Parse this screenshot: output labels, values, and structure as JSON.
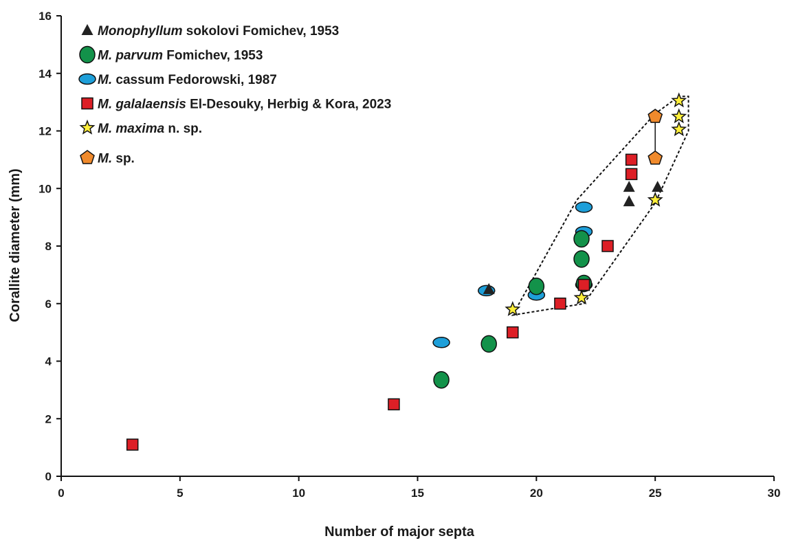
{
  "chart_data": {
    "type": "scatter",
    "xlabel": "Number of major septa",
    "ylabel": "Corallite diameter (mm)",
    "xlim": [
      0,
      30
    ],
    "ylim": [
      0,
      16
    ],
    "xticks": [
      0,
      5,
      10,
      15,
      20,
      25,
      30
    ],
    "yticks": [
      0,
      2,
      4,
      6,
      8,
      10,
      12,
      14,
      16
    ],
    "grid": false,
    "legend_position": "top-left",
    "series": [
      {
        "name_italic": "Monophyllum",
        "name_rest": " sokolovi Fomichev, 1953",
        "marker": "triangle",
        "color": "#222222",
        "points": [
          [
            18,
            6.5
          ],
          [
            23.9,
            10.05
          ],
          [
            23.9,
            9.55
          ],
          [
            25.1,
            10.05
          ]
        ]
      },
      {
        "name_italic": "M. parvum",
        "name_rest": " Fomichev, 1953",
        "marker": "circle",
        "color": "#13924a",
        "points": [
          [
            16,
            3.35
          ],
          [
            18,
            4.6
          ],
          [
            20,
            6.6
          ],
          [
            21.9,
            8.25
          ],
          [
            21.9,
            7.55
          ],
          [
            22,
            6.7
          ]
        ]
      },
      {
        "name_italic": "M.",
        "name_rest": " cassum Fedorowski, 1987",
        "marker": "ellipse",
        "color": "#1e9fd9",
        "points": [
          [
            16,
            4.65
          ],
          [
            17.9,
            6.45
          ],
          [
            20,
            6.3
          ],
          [
            22,
            9.35
          ],
          [
            22,
            8.5
          ],
          [
            22,
            6.65
          ]
        ]
      },
      {
        "name_italic": "M. galalaensis",
        "name_rest": " El-Desouky, Herbig & Kora, 2023",
        "marker": "square",
        "color": "#dd1f26",
        "points": [
          [
            3,
            1.1
          ],
          [
            14,
            2.5
          ],
          [
            19,
            5.0
          ],
          [
            21,
            6.0
          ],
          [
            22,
            6.65
          ],
          [
            23,
            8.0
          ],
          [
            24,
            11.0
          ],
          [
            24,
            10.5
          ]
        ]
      },
      {
        "name_italic": "M. maxima",
        "name_rest": " n. sp.",
        "marker": "star",
        "color": "#ffef3a",
        "points": [
          [
            19,
            5.8
          ],
          [
            21.9,
            6.2
          ],
          [
            25,
            9.6
          ],
          [
            26,
            13.05
          ],
          [
            26,
            12.5
          ],
          [
            26,
            12.05
          ]
        ]
      },
      {
        "name_italic": "M.",
        "name_rest": " sp.",
        "marker": "pentagon",
        "color": "#f08a2c",
        "points": [
          [
            25,
            12.5
          ],
          [
            25,
            11.05
          ]
        ]
      }
    ],
    "connector_line": [
      [
        25,
        12.5
      ],
      [
        25,
        11.05
      ]
    ],
    "envelope": [
      [
        19,
        5.6
      ],
      [
        22,
        6.0
      ],
      [
        25,
        9.5
      ],
      [
        26.4,
        12.0
      ],
      [
        26.4,
        13.2
      ],
      [
        26,
        13.2
      ],
      [
        25,
        12.6
      ],
      [
        21.7,
        9.6
      ],
      [
        19,
        5.6
      ]
    ]
  }
}
